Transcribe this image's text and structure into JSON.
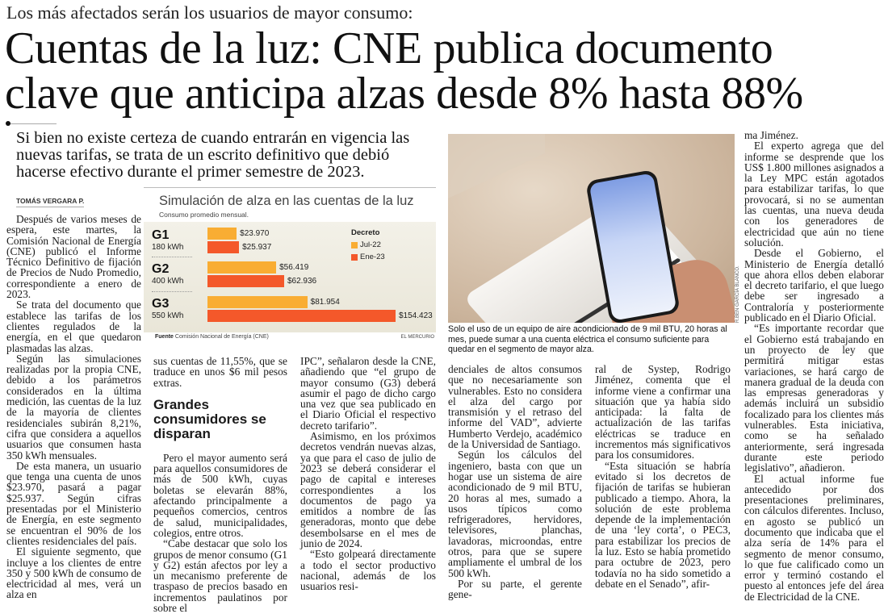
{
  "kicker": "Los más afectados serán los usuarios de mayor consumo:",
  "headline": [
    "Cuentas de la luz: CNE publica documento",
    "clave que anticipa alzas desde 8% hasta 88%"
  ],
  "deck": "Si bien no existe certeza de cuando entrarán en vigencia las nuevas tarifas, se trata de un escrito definitivo que debió hacerse efectivo durante el primer semestre de 2023.",
  "byline": "TOMÁS VERGARA P.",
  "columns": {
    "c1": [
      "Después de varios meses de espera, este martes, la Comisión Nacional de Energía (CNE) publicó el Informe Técnico Definitivo de fijación de Precios de Nudo Promedio, correspondiente a enero de 2023.",
      "Se trata del documento que establece las tarifas de los clientes regulados de la energía, en el que quedaron plasmadas las alzas.",
      "Según las simulaciones realizadas por la propia CNE, debido a los parámetros considerados en la última medición, las cuentas de la luz de la mayoría de clientes residenciales subirán 8,21%, cifra que considera a aquellos usuarios que consumen hasta 350 kWh mensuales.",
      "De esta manera, un usuario que tenga una cuenta de unos $23.970, pasará a pagar $25.937. Según cifras presentadas por el Ministerio de Energía, en este segmento se encuentran el 90% de los clientes residenciales del país.",
      "El siguiente segmento, que incluye a los clientes de entre 350 y 500 kWh de consumo de electricidad al mes, verá un alza en"
    ],
    "c2_lead": "sus cuentas de 11,55%, que se traduce en unos $6 mil pesos extras.",
    "subhead": "Grandes consumidores se disparan",
    "c2": [
      "Pero el mayor aumento será para aquellos consumidores de más de 500 kWh, cuyas boletas se elevarán 88%, afectando principalmente a pequeños comercios, centros de salud, municipalidades, colegios, entre otros.",
      "“Cabe destacar que solo los grupos de menor consumo (G1 y G2) están afectos por ley a un mecanismo preferente de traspaso de precios basado en incrementos paulatinos por sobre el"
    ],
    "c3_lead": "IPC”, señalaron desde la CNE, añadiendo que “el grupo de mayor consumo (G3) deberá asumir el pago de dicho cargo una vez que sea publicado en el Diario Oficial el respectivo decreto tarifario”.",
    "c3": [
      "Asimismo, en los próximos decretos vendrán nuevas alzas, ya que para el caso de julio de 2023 se deberá considerar el pago de capital e intereses correspondientes a los documentos de pago ya emitidos a nombre de las generadoras, monto que debe desembolsarse en el mes de junio de 2024.",
      "“Esto golpeará directamente a todo el sector productivo nacional, además de los usuarios resi-"
    ],
    "c4_lead": "denciales de altos consumos que no necesariamente son vulnerables. Esto no considera el alza del cargo por transmisión y el retraso del informe del VAD”, advierte Humberto Verdejo, académico de la Universidad de Santiago.",
    "c4": [
      "Según los cálculos del ingeniero, basta con que un hogar use un sistema de aire acondicionado de 9 mil BTU, 20 horas al mes, sumado a usos típicos como refrigeradores, hervidores, televisores, planchas, lavadoras, microondas, entre otros, para que se supere ampliamente el umbral de los 500 kWh.",
      "Por su parte, el gerente gene-"
    ],
    "c5_lead": "ral de Systep, Rodrigo Jiménez, comenta que el informe viene a confirmar una situación que ya había sido anticipada: la falta de actualización de las tarifas eléctricas se traduce en incrementos más significativos para los consumidores.",
    "c5": [
      "“Esta situación se habría evitado si los decretos de fijación de tarifas se hubieran publicado a tiempo. Ahora, la solución de este problema depende de la implementación de una ‘ley corta’, o PEC3, para estabilizar los precios de la luz. Esto se había prometido para octubre de 2023, pero todavía no ha sido sometido a debate en el Senado”, afir-"
    ],
    "c6_lead": "ma Jiménez.",
    "c6": [
      "El experto agrega que del informe se desprende que los US$ 1.800 millones asignados a la Ley MPC están agotados para estabilizar tarifas, lo que provocará, si no se aumentan las cuentas, una nueva deuda con los generadores de electricidad que aún no tiene solución.",
      "Desde el Gobierno, el Ministerio de Energía detalló que ahora ellos deben elaborar el decreto tarifario, el que luego debe ser ingresado a Contraloría y posteriormente publicado en el Diario Oficial.",
      "“Es importante recordar que el Gobierno está trabajando en un proyecto de ley que permitirá mitigar estas variaciones, se hará cargo de manera gradual de la deuda con las empresas generadoras y además incluirá un subsidio focalizado para los clientes más vulnerables. Esta iniciativa, como se ha señalado anteriormente, será ingresada durante este periodo legislativo”, añadieron.",
      "El actual informe fue antecedido por dos presentaciones preliminares, con cálculos diferentes. Incluso, en agosto se publicó un documento que indicaba que el alza sería de 14% para el segmento de menor consumo, lo que fue calificado como un error y terminó costando el puesto al entonces jefe del área de Electricidad de la CNE."
    ]
  },
  "photo": {
    "credit": "R.BEN GARCÍA BLANCO.",
    "caption": "Solo el uso de un equipo de aire acondicionado de 9 mil BTU, 20 horas al mes, puede sumar a una cuenta eléctrica el consumo suficiente para quedar en el segmento de mayor alza."
  },
  "chart_data": {
    "type": "bar",
    "orientation": "horizontal",
    "title": "Simulación de alza en las cuentas de la luz",
    "subtitle": "Consumo promedio mensual.",
    "categories": [
      "G1",
      "G2",
      "G3"
    ],
    "category_sublabels": [
      "180 kWh",
      "400 kWh",
      "550 kWh"
    ],
    "legend_title": "Decreto",
    "legend_position": "top-right",
    "series": [
      {
        "name": "Jul-22",
        "color": "#f9ad33",
        "values": [
          23970,
          56419,
          81954
        ],
        "labels": [
          "$23.970",
          "$56.419",
          "$81.954"
        ]
      },
      {
        "name": "Ene-23",
        "color": "#f4582a",
        "values": [
          25937,
          62936,
          154423
        ],
        "labels": [
          "$25.937",
          "$62.936",
          "$154.423"
        ]
      }
    ],
    "source_label": "Fuente",
    "source": "Comisión Nacional de Energía (CNE)",
    "brand": "EL MERCURIO"
  }
}
